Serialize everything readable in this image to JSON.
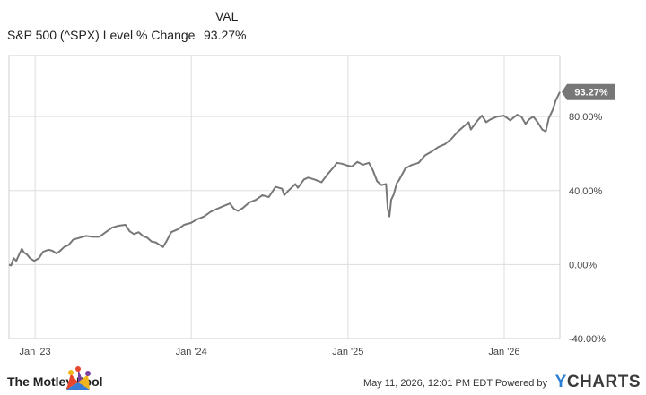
{
  "legend": {
    "header": "VAL",
    "series_name": "S&P 500 (^SPX) Level % Change",
    "series_value": "93.27%"
  },
  "chart_data": {
    "type": "line",
    "title": "",
    "xlabel": "",
    "ylabel": "",
    "x_tick_labels": [
      "Jan '23",
      "Jan '24",
      "Jan '25",
      "Jan '26"
    ],
    "y_tick_labels": [
      "-40.00%",
      "0.00%",
      "40.00%",
      "80.00%"
    ],
    "y_ticks": [
      -40,
      0,
      40,
      80
    ],
    "ylim": [
      -40,
      113
    ],
    "xlim": [
      "2022-11-01",
      "2026-05-11"
    ],
    "grid": true,
    "last_value_label": "93.27%",
    "series": [
      {
        "name": "S&P 500 (^SPX) Level % Change",
        "color": "#777777",
        "x": [
          "2022-11-01",
          "2022-11-06",
          "2022-11-12",
          "2022-11-18",
          "2022-11-25",
          "2022-12-01",
          "2022-12-06",
          "2022-12-13",
          "2022-12-20",
          "2022-12-30",
          "2023-01-10",
          "2023-01-20",
          "2023-02-01",
          "2023-02-10",
          "2023-02-20",
          "2023-03-01",
          "2023-03-10",
          "2023-03-20",
          "2023-03-31",
          "2023-04-15",
          "2023-04-30",
          "2023-05-15",
          "2023-05-31",
          "2023-06-15",
          "2023-06-30",
          "2023-07-15",
          "2023-07-31",
          "2023-08-10",
          "2023-08-20",
          "2023-08-31",
          "2023-09-10",
          "2023-09-20",
          "2023-09-30",
          "2023-10-10",
          "2023-10-20",
          "2023-10-27",
          "2023-11-05",
          "2023-11-15",
          "2023-11-30",
          "2023-12-15",
          "2023-12-31",
          "2024-01-15",
          "2024-01-31",
          "2024-02-15",
          "2024-02-29",
          "2024-03-15",
          "2024-03-31",
          "2024-04-10",
          "2024-04-19",
          "2024-04-30",
          "2024-05-15",
          "2024-05-31",
          "2024-06-15",
          "2024-06-30",
          "2024-07-16",
          "2024-07-31",
          "2024-08-05",
          "2024-08-15",
          "2024-08-31",
          "2024-09-06",
          "2024-09-20",
          "2024-09-30",
          "2024-10-15",
          "2024-10-31",
          "2024-11-15",
          "2024-11-30",
          "2024-12-06",
          "2024-12-18",
          "2024-12-31",
          "2025-01-10",
          "2025-01-23",
          "2025-02-05",
          "2025-02-19",
          "2025-03-01",
          "2025-03-10",
          "2025-03-20",
          "2025-03-31",
          "2025-04-04",
          "2025-04-08",
          "2025-04-12",
          "2025-04-18",
          "2025-04-25",
          "2025-04-30",
          "2025-05-15",
          "2025-05-31",
          "2025-06-15",
          "2025-06-30",
          "2025-07-15",
          "2025-07-31",
          "2025-08-15",
          "2025-08-31",
          "2025-09-15",
          "2025-09-30",
          "2025-10-10",
          "2025-10-15",
          "2025-10-31",
          "2025-11-10",
          "2025-11-20",
          "2025-11-30",
          "2025-12-15",
          "2025-12-31",
          "2026-01-15",
          "2026-01-31",
          "2026-02-10",
          "2026-02-20",
          "2026-02-28",
          "2026-03-10",
          "2026-03-20",
          "2026-03-31",
          "2026-04-08",
          "2026-04-15",
          "2026-04-25",
          "2026-05-01",
          "2026-05-11"
        ],
        "y": [
          0.0,
          -0.5,
          3.5,
          2.0,
          5.5,
          8.5,
          6.5,
          5.5,
          3.5,
          2.0,
          3.5,
          7.0,
          8.0,
          7.5,
          6.0,
          7.5,
          9.5,
          10.5,
          13.5,
          14.5,
          15.5,
          15.0,
          15.0,
          17.5,
          20.0,
          21.0,
          21.5,
          18.0,
          16.5,
          17.5,
          15.5,
          14.5,
          12.5,
          12.0,
          10.5,
          9.5,
          13.0,
          17.5,
          19.0,
          21.5,
          22.5,
          24.5,
          26.0,
          28.5,
          30.0,
          31.5,
          33.0,
          30.0,
          29.0,
          30.5,
          33.5,
          35.0,
          37.5,
          36.5,
          42.0,
          41.0,
          37.5,
          40.0,
          43.5,
          41.5,
          46.0,
          47.0,
          46.0,
          44.5,
          49.0,
          53.0,
          55.0,
          54.5,
          53.5,
          53.0,
          55.5,
          54.0,
          55.0,
          50.5,
          45.0,
          43.0,
          43.5,
          30.0,
          26.0,
          35.0,
          38.0,
          44.0,
          45.5,
          52.0,
          54.0,
          55.0,
          59.0,
          61.0,
          63.5,
          65.0,
          68.0,
          72.0,
          75.0,
          77.0,
          73.0,
          78.0,
          80.5,
          77.0,
          78.5,
          80.0,
          80.5,
          78.0,
          81.0,
          80.0,
          76.0,
          78.5,
          80.0,
          77.0,
          73.0,
          72.0,
          79.0,
          84.0,
          88.5,
          93.27
        ]
      }
    ]
  },
  "footer": {
    "brand": "The Motley Fool",
    "timestamp": "May 11, 2026, 12:01 PM EDT Powered by",
    "ycharts_y": "Y",
    "ycharts_rest": "CHARTS"
  }
}
